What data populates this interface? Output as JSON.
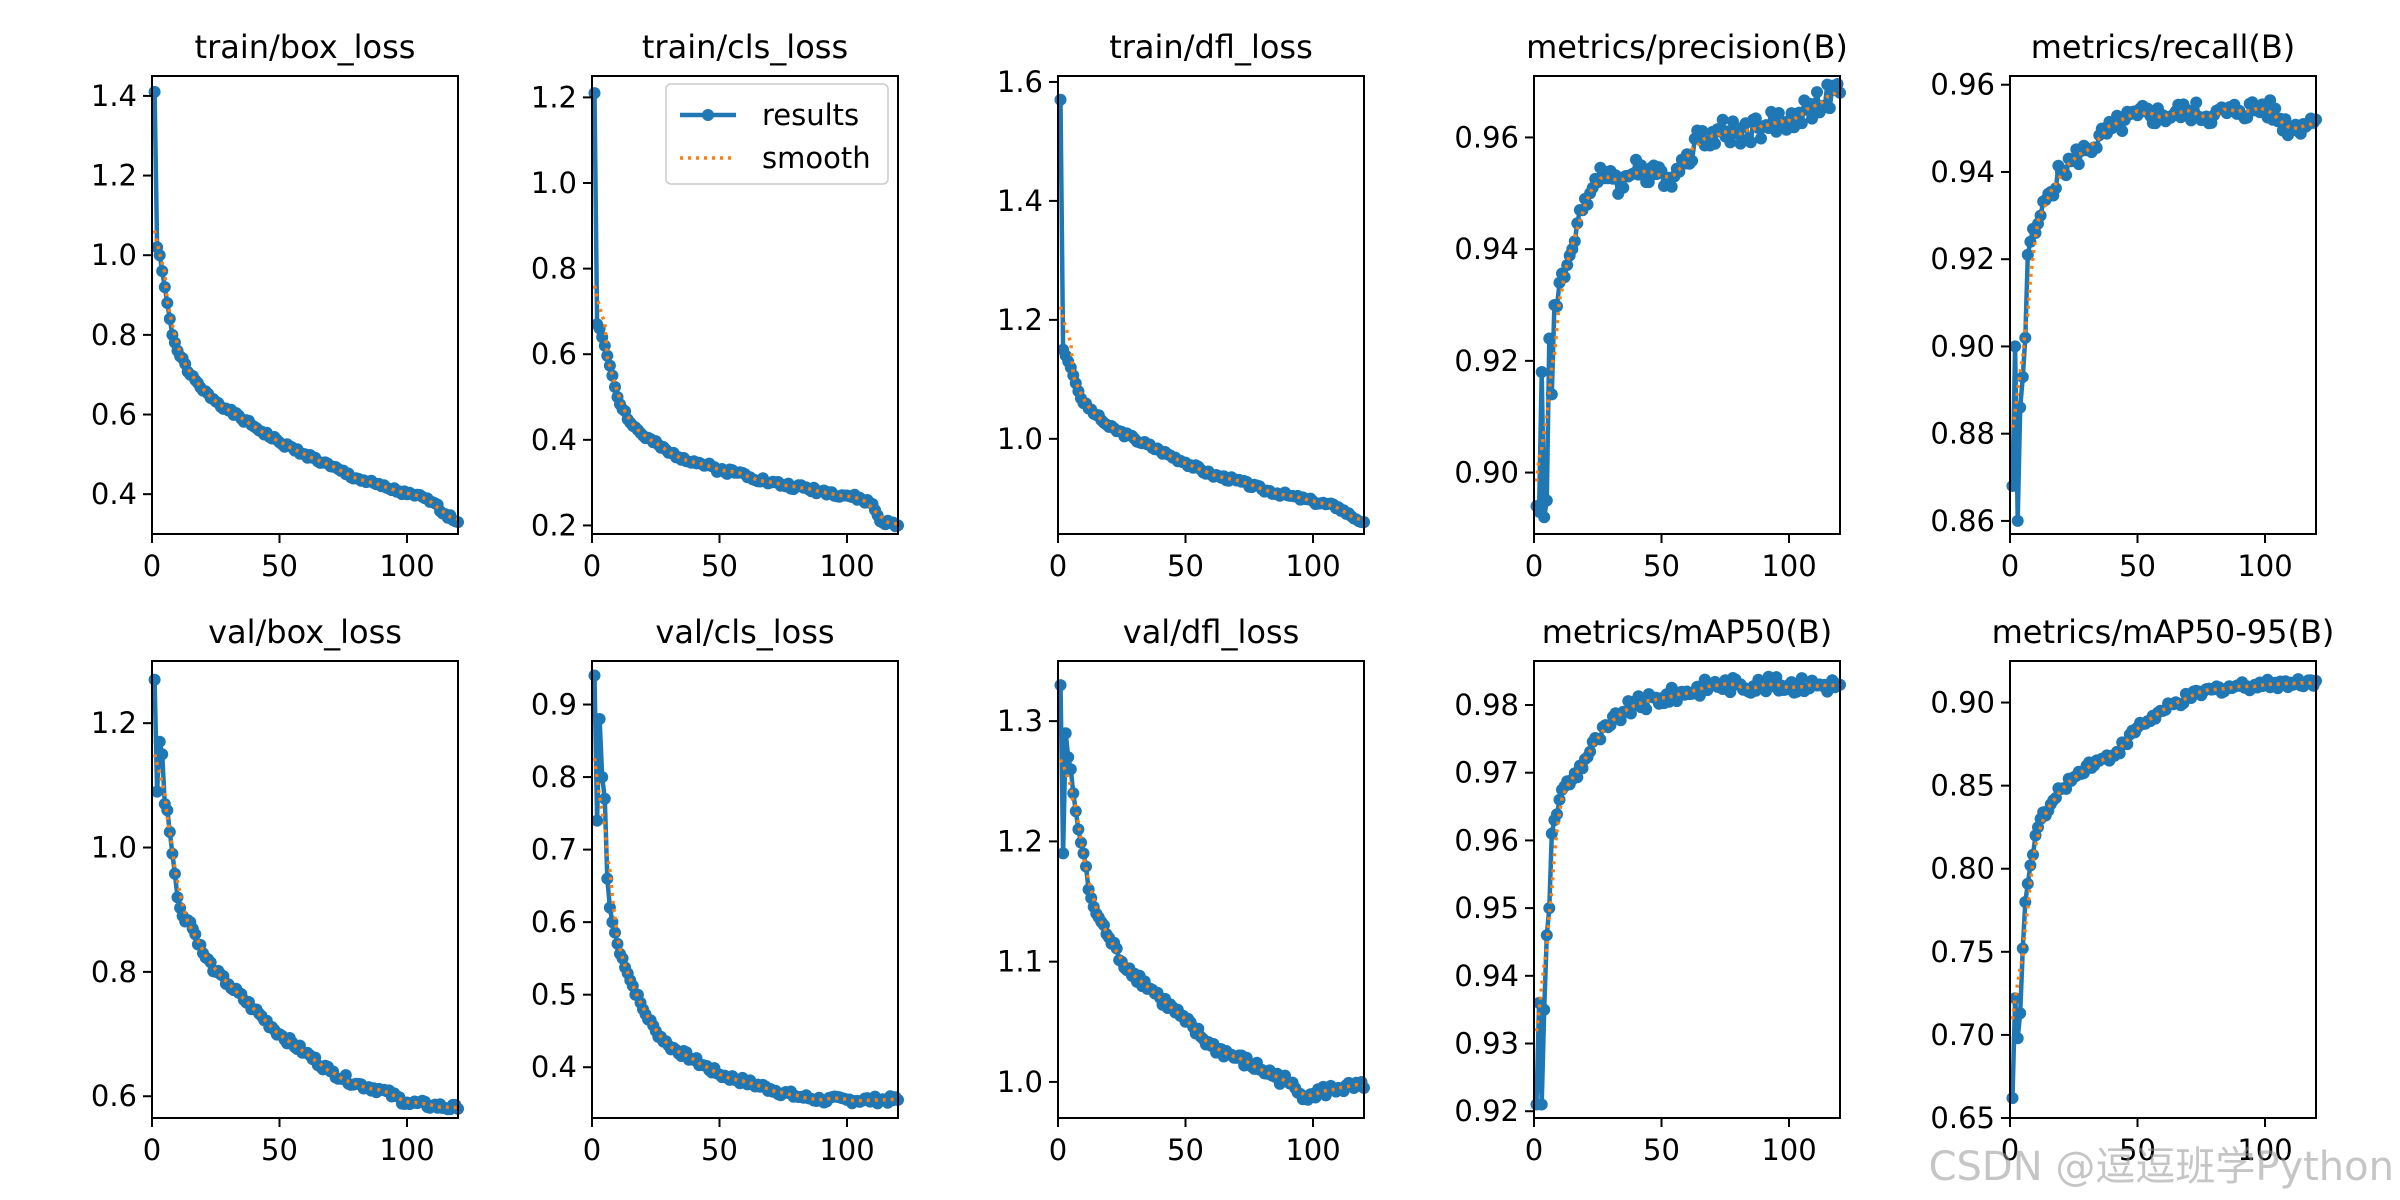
{
  "watermark": "CSDN @逗逗班学Python",
  "colors": {
    "results": "#1f77b4",
    "smooth": "#ff7f0e"
  },
  "chart_data": [
    {
      "type": "line",
      "title": "train/box_loss",
      "xlim": [
        0,
        120
      ],
      "ylim": [
        0.3,
        1.45
      ],
      "xticks": [
        0,
        50,
        100
      ],
      "yticks": [
        0.4,
        0.6,
        0.8,
        1.0,
        1.2,
        1.4
      ],
      "yfmt": 1,
      "legend": null,
      "key": [
        [
          1,
          1.41
        ],
        [
          2,
          1.02
        ],
        [
          3,
          1.0
        ],
        [
          4,
          0.96
        ],
        [
          6,
          0.88
        ],
        [
          8,
          0.8
        ],
        [
          10,
          0.76
        ],
        [
          15,
          0.7
        ],
        [
          20,
          0.66
        ],
        [
          30,
          0.61
        ],
        [
          40,
          0.57
        ],
        [
          50,
          0.53
        ],
        [
          60,
          0.5
        ],
        [
          70,
          0.47
        ],
        [
          80,
          0.44
        ],
        [
          90,
          0.42
        ],
        [
          100,
          0.4
        ],
        [
          107,
          0.39
        ],
        [
          110,
          0.38
        ],
        [
          115,
          0.35
        ],
        [
          120,
          0.33
        ]
      ],
      "noise": 0.006,
      "seed": 1,
      "series": [
        {
          "name": "results"
        },
        {
          "name": "smooth"
        }
      ]
    },
    {
      "type": "line",
      "title": "train/cls_loss",
      "xlim": [
        0,
        120
      ],
      "ylim": [
        0.18,
        1.25
      ],
      "xticks": [
        0,
        50,
        100
      ],
      "yticks": [
        0.2,
        0.4,
        0.6,
        0.8,
        1.0,
        1.2
      ],
      "yfmt": 1,
      "legend": "upper right",
      "key": [
        [
          1,
          1.21
        ],
        [
          2,
          0.67
        ],
        [
          3,
          0.66
        ],
        [
          5,
          0.62
        ],
        [
          8,
          0.55
        ],
        [
          10,
          0.5
        ],
        [
          15,
          0.44
        ],
        [
          20,
          0.41
        ],
        [
          30,
          0.37
        ],
        [
          40,
          0.35
        ],
        [
          50,
          0.33
        ],
        [
          60,
          0.32
        ],
        [
          70,
          0.3
        ],
        [
          80,
          0.29
        ],
        [
          90,
          0.28
        ],
        [
          100,
          0.27
        ],
        [
          106,
          0.26
        ],
        [
          110,
          0.25
        ],
        [
          113,
          0.21
        ],
        [
          120,
          0.2
        ]
      ],
      "noise": 0.007,
      "seed": 2,
      "series": [
        {
          "name": "results"
        },
        {
          "name": "smooth"
        }
      ]
    },
    {
      "type": "line",
      "title": "train/dfl_loss",
      "xlim": [
        0,
        120
      ],
      "ylim": [
        0.84,
        1.61
      ],
      "xticks": [
        0,
        50,
        100
      ],
      "yticks": [
        1.0,
        1.2,
        1.4,
        1.6
      ],
      "yfmt": 1,
      "legend": null,
      "key": [
        [
          1,
          1.57
        ],
        [
          2,
          1.15
        ],
        [
          3,
          1.14
        ],
        [
          5,
          1.12
        ],
        [
          8,
          1.08
        ],
        [
          10,
          1.06
        ],
        [
          15,
          1.04
        ],
        [
          20,
          1.02
        ],
        [
          30,
          1.0
        ],
        [
          40,
          0.98
        ],
        [
          50,
          0.96
        ],
        [
          60,
          0.94
        ],
        [
          70,
          0.93
        ],
        [
          80,
          0.915
        ],
        [
          90,
          0.905
        ],
        [
          100,
          0.895
        ],
        [
          110,
          0.885
        ],
        [
          115,
          0.87
        ],
        [
          120,
          0.86
        ]
      ],
      "noise": 0.004,
      "seed": 3,
      "series": [
        {
          "name": "results"
        },
        {
          "name": "smooth"
        }
      ]
    },
    {
      "type": "line",
      "title": "metrics/precision(B)",
      "xlim": [
        0,
        120
      ],
      "ylim": [
        0.889,
        0.971
      ],
      "xticks": [
        0,
        50,
        100
      ],
      "yticks": [
        0.9,
        0.92,
        0.94,
        0.96
      ],
      "yfmt": 2,
      "legend": null,
      "key": [
        [
          1,
          0.894
        ],
        [
          2,
          0.893
        ],
        [
          3,
          0.918
        ],
        [
          4,
          0.892
        ],
        [
          5,
          0.895
        ],
        [
          6,
          0.924
        ],
        [
          7,
          0.914
        ],
        [
          8,
          0.93
        ],
        [
          10,
          0.934
        ],
        [
          12,
          0.935
        ],
        [
          15,
          0.94
        ],
        [
          18,
          0.947
        ],
        [
          20,
          0.949
        ],
        [
          25,
          0.952
        ],
        [
          30,
          0.954
        ],
        [
          35,
          0.951
        ],
        [
          40,
          0.956
        ],
        [
          45,
          0.952
        ],
        [
          50,
          0.954
        ],
        [
          55,
          0.953
        ],
        [
          60,
          0.957
        ],
        [
          65,
          0.96
        ],
        [
          70,
          0.961
        ],
        [
          80,
          0.961
        ],
        [
          90,
          0.962
        ],
        [
          100,
          0.963
        ],
        [
          110,
          0.966
        ],
        [
          120,
          0.968
        ]
      ],
      "noise": 0.0025,
      "seed": 4,
      "series": [
        {
          "name": "results"
        },
        {
          "name": "smooth"
        }
      ]
    },
    {
      "type": "line",
      "title": "metrics/recall(B)",
      "xlim": [
        0,
        120
      ],
      "ylim": [
        0.857,
        0.962
      ],
      "xticks": [
        0,
        50,
        100
      ],
      "yticks": [
        0.86,
        0.88,
        0.9,
        0.92,
        0.94,
        0.96
      ],
      "yfmt": 2,
      "legend": null,
      "key": [
        [
          1,
          0.868
        ],
        [
          2,
          0.9
        ],
        [
          3,
          0.86
        ],
        [
          4,
          0.886
        ],
        [
          5,
          0.893
        ],
        [
          6,
          0.902
        ],
        [
          7,
          0.921
        ],
        [
          8,
          0.924
        ],
        [
          10,
          0.926
        ],
        [
          12,
          0.93
        ],
        [
          15,
          0.935
        ],
        [
          20,
          0.94
        ],
        [
          25,
          0.943
        ],
        [
          30,
          0.945
        ],
        [
          40,
          0.95
        ],
        [
          50,
          0.953
        ],
        [
          60,
          0.953
        ],
        [
          70,
          0.954
        ],
        [
          80,
          0.953
        ],
        [
          90,
          0.954
        ],
        [
          100,
          0.955
        ],
        [
          110,
          0.95
        ],
        [
          115,
          0.951
        ],
        [
          120,
          0.952
        ]
      ],
      "noise": 0.0025,
      "seed": 5,
      "series": [
        {
          "name": "results"
        },
        {
          "name": "smooth"
        }
      ]
    },
    {
      "type": "line",
      "title": "val/box_loss",
      "xlim": [
        0,
        120
      ],
      "ylim": [
        0.565,
        1.3
      ],
      "xticks": [
        0,
        50,
        100
      ],
      "yticks": [
        0.6,
        0.8,
        1.0,
        1.2
      ],
      "yfmt": 1,
      "legend": null,
      "key": [
        [
          1,
          1.27
        ],
        [
          2,
          1.09
        ],
        [
          3,
          1.17
        ],
        [
          4,
          1.15
        ],
        [
          5,
          1.07
        ],
        [
          6,
          1.06
        ],
        [
          8,
          0.99
        ],
        [
          10,
          0.92
        ],
        [
          12,
          0.89
        ],
        [
          15,
          0.88
        ],
        [
          20,
          0.83
        ],
        [
          25,
          0.8
        ],
        [
          30,
          0.78
        ],
        [
          40,
          0.74
        ],
        [
          50,
          0.7
        ],
        [
          60,
          0.67
        ],
        [
          70,
          0.64
        ],
        [
          80,
          0.62
        ],
        [
          90,
          0.61
        ],
        [
          100,
          0.59
        ],
        [
          110,
          0.585
        ],
        [
          120,
          0.58
        ]
      ],
      "noise": 0.006,
      "seed": 6,
      "series": [
        {
          "name": "results"
        },
        {
          "name": "smooth"
        }
      ]
    },
    {
      "type": "line",
      "title": "val/cls_loss",
      "xlim": [
        0,
        120
      ],
      "ylim": [
        0.33,
        0.96
      ],
      "xticks": [
        0,
        50,
        100
      ],
      "yticks": [
        0.4,
        0.5,
        0.6,
        0.7,
        0.8,
        0.9
      ],
      "yfmt": 1,
      "legend": null,
      "key": [
        [
          1,
          0.94
        ],
        [
          2,
          0.74
        ],
        [
          3,
          0.88
        ],
        [
          4,
          0.8
        ],
        [
          5,
          0.77
        ],
        [
          6,
          0.66
        ],
        [
          7,
          0.62
        ],
        [
          8,
          0.6
        ],
        [
          10,
          0.57
        ],
        [
          12,
          0.55
        ],
        [
          15,
          0.52
        ],
        [
          20,
          0.48
        ],
        [
          25,
          0.45
        ],
        [
          30,
          0.43
        ],
        [
          40,
          0.41
        ],
        [
          50,
          0.39
        ],
        [
          60,
          0.38
        ],
        [
          70,
          0.37
        ],
        [
          80,
          0.36
        ],
        [
          90,
          0.355
        ],
        [
          100,
          0.355
        ],
        [
          110,
          0.355
        ],
        [
          120,
          0.355
        ]
      ],
      "noise": 0.005,
      "seed": 7,
      "series": [
        {
          "name": "results"
        },
        {
          "name": "smooth"
        }
      ]
    },
    {
      "type": "line",
      "title": "val/dfl_loss",
      "xlim": [
        0,
        120
      ],
      "ylim": [
        0.97,
        1.35
      ],
      "xticks": [
        0,
        50,
        100
      ],
      "yticks": [
        1.0,
        1.1,
        1.2,
        1.3
      ],
      "yfmt": 1,
      "legend": null,
      "key": [
        [
          1,
          1.33
        ],
        [
          2,
          1.19
        ],
        [
          3,
          1.29
        ],
        [
          4,
          1.27
        ],
        [
          5,
          1.26
        ],
        [
          6,
          1.24
        ],
        [
          8,
          1.21
        ],
        [
          10,
          1.19
        ],
        [
          12,
          1.16
        ],
        [
          15,
          1.14
        ],
        [
          20,
          1.12
        ],
        [
          25,
          1.1
        ],
        [
          30,
          1.09
        ],
        [
          40,
          1.07
        ],
        [
          50,
          1.05
        ],
        [
          60,
          1.03
        ],
        [
          70,
          1.02
        ],
        [
          80,
          1.01
        ],
        [
          90,
          1.0
        ],
        [
          95,
          0.99
        ],
        [
          100,
          0.99
        ],
        [
          110,
          0.995
        ],
        [
          120,
          0.995
        ]
      ],
      "noise": 0.005,
      "seed": 8,
      "series": [
        {
          "name": "results"
        },
        {
          "name": "smooth"
        }
      ]
    },
    {
      "type": "line",
      "title": "metrics/mAP50(B)",
      "xlim": [
        0,
        120
      ],
      "ylim": [
        0.919,
        0.9865
      ],
      "xticks": [
        0,
        50,
        100
      ],
      "yticks": [
        0.92,
        0.93,
        0.94,
        0.95,
        0.96,
        0.97,
        0.98
      ],
      "yfmt": 2,
      "legend": null,
      "key": [
        [
          1,
          0.921
        ],
        [
          2,
          0.936
        ],
        [
          3,
          0.921
        ],
        [
          4,
          0.935
        ],
        [
          5,
          0.946
        ],
        [
          6,
          0.95
        ],
        [
          7,
          0.961
        ],
        [
          8,
          0.963
        ],
        [
          10,
          0.966
        ],
        [
          12,
          0.968
        ],
        [
          15,
          0.969
        ],
        [
          20,
          0.972
        ],
        [
          25,
          0.975
        ],
        [
          30,
          0.977
        ],
        [
          35,
          0.979
        ],
        [
          40,
          0.98
        ],
        [
          50,
          0.981
        ],
        [
          60,
          0.982
        ],
        [
          70,
          0.983
        ],
        [
          80,
          0.983
        ],
        [
          90,
          0.983
        ],
        [
          100,
          0.983
        ],
        [
          110,
          0.983
        ],
        [
          120,
          0.983
        ]
      ],
      "noise": 0.0012,
      "seed": 9,
      "series": [
        {
          "name": "results"
        },
        {
          "name": "smooth"
        }
      ]
    },
    {
      "type": "line",
      "title": "metrics/mAP50-95(B)",
      "xlim": [
        0,
        120
      ],
      "ylim": [
        0.65,
        0.925
      ],
      "xticks": [
        0,
        50,
        100
      ],
      "yticks": [
        0.65,
        0.7,
        0.75,
        0.8,
        0.85,
        0.9
      ],
      "yfmt": 2,
      "legend": null,
      "key": [
        [
          1,
          0.662
        ],
        [
          2,
          0.722
        ],
        [
          3,
          0.698
        ],
        [
          4,
          0.713
        ],
        [
          5,
          0.752
        ],
        [
          6,
          0.78
        ],
        [
          8,
          0.802
        ],
        [
          10,
          0.82
        ],
        [
          12,
          0.83
        ],
        [
          15,
          0.835
        ],
        [
          20,
          0.848
        ],
        [
          25,
          0.855
        ],
        [
          30,
          0.862
        ],
        [
          35,
          0.865
        ],
        [
          40,
          0.868
        ],
        [
          45,
          0.875
        ],
        [
          50,
          0.885
        ],
        [
          60,
          0.895
        ],
        [
          70,
          0.903
        ],
        [
          80,
          0.908
        ],
        [
          90,
          0.91
        ],
        [
          100,
          0.911
        ],
        [
          110,
          0.912
        ],
        [
          120,
          0.913
        ]
      ],
      "noise": 0.003,
      "seed": 10,
      "series": [
        {
          "name": "results"
        },
        {
          "name": "smooth"
        }
      ]
    }
  ]
}
